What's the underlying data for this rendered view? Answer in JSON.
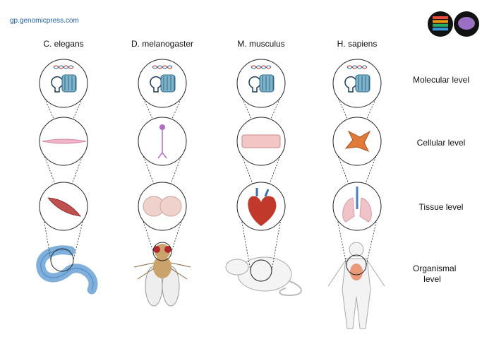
{
  "header": {
    "url": "gp.genomicpress.com"
  },
  "columns": [
    {
      "title": "C. elegans"
    },
    {
      "title": "D. melanogaster"
    },
    {
      "title": "M. musculus"
    },
    {
      "title": "H. sapiens"
    }
  ],
  "rows": [
    {
      "label": "Molecular level"
    },
    {
      "label": "Cellular level"
    },
    {
      "label": "Tissue level"
    },
    {
      "label": "Organismal level"
    }
  ]
}
